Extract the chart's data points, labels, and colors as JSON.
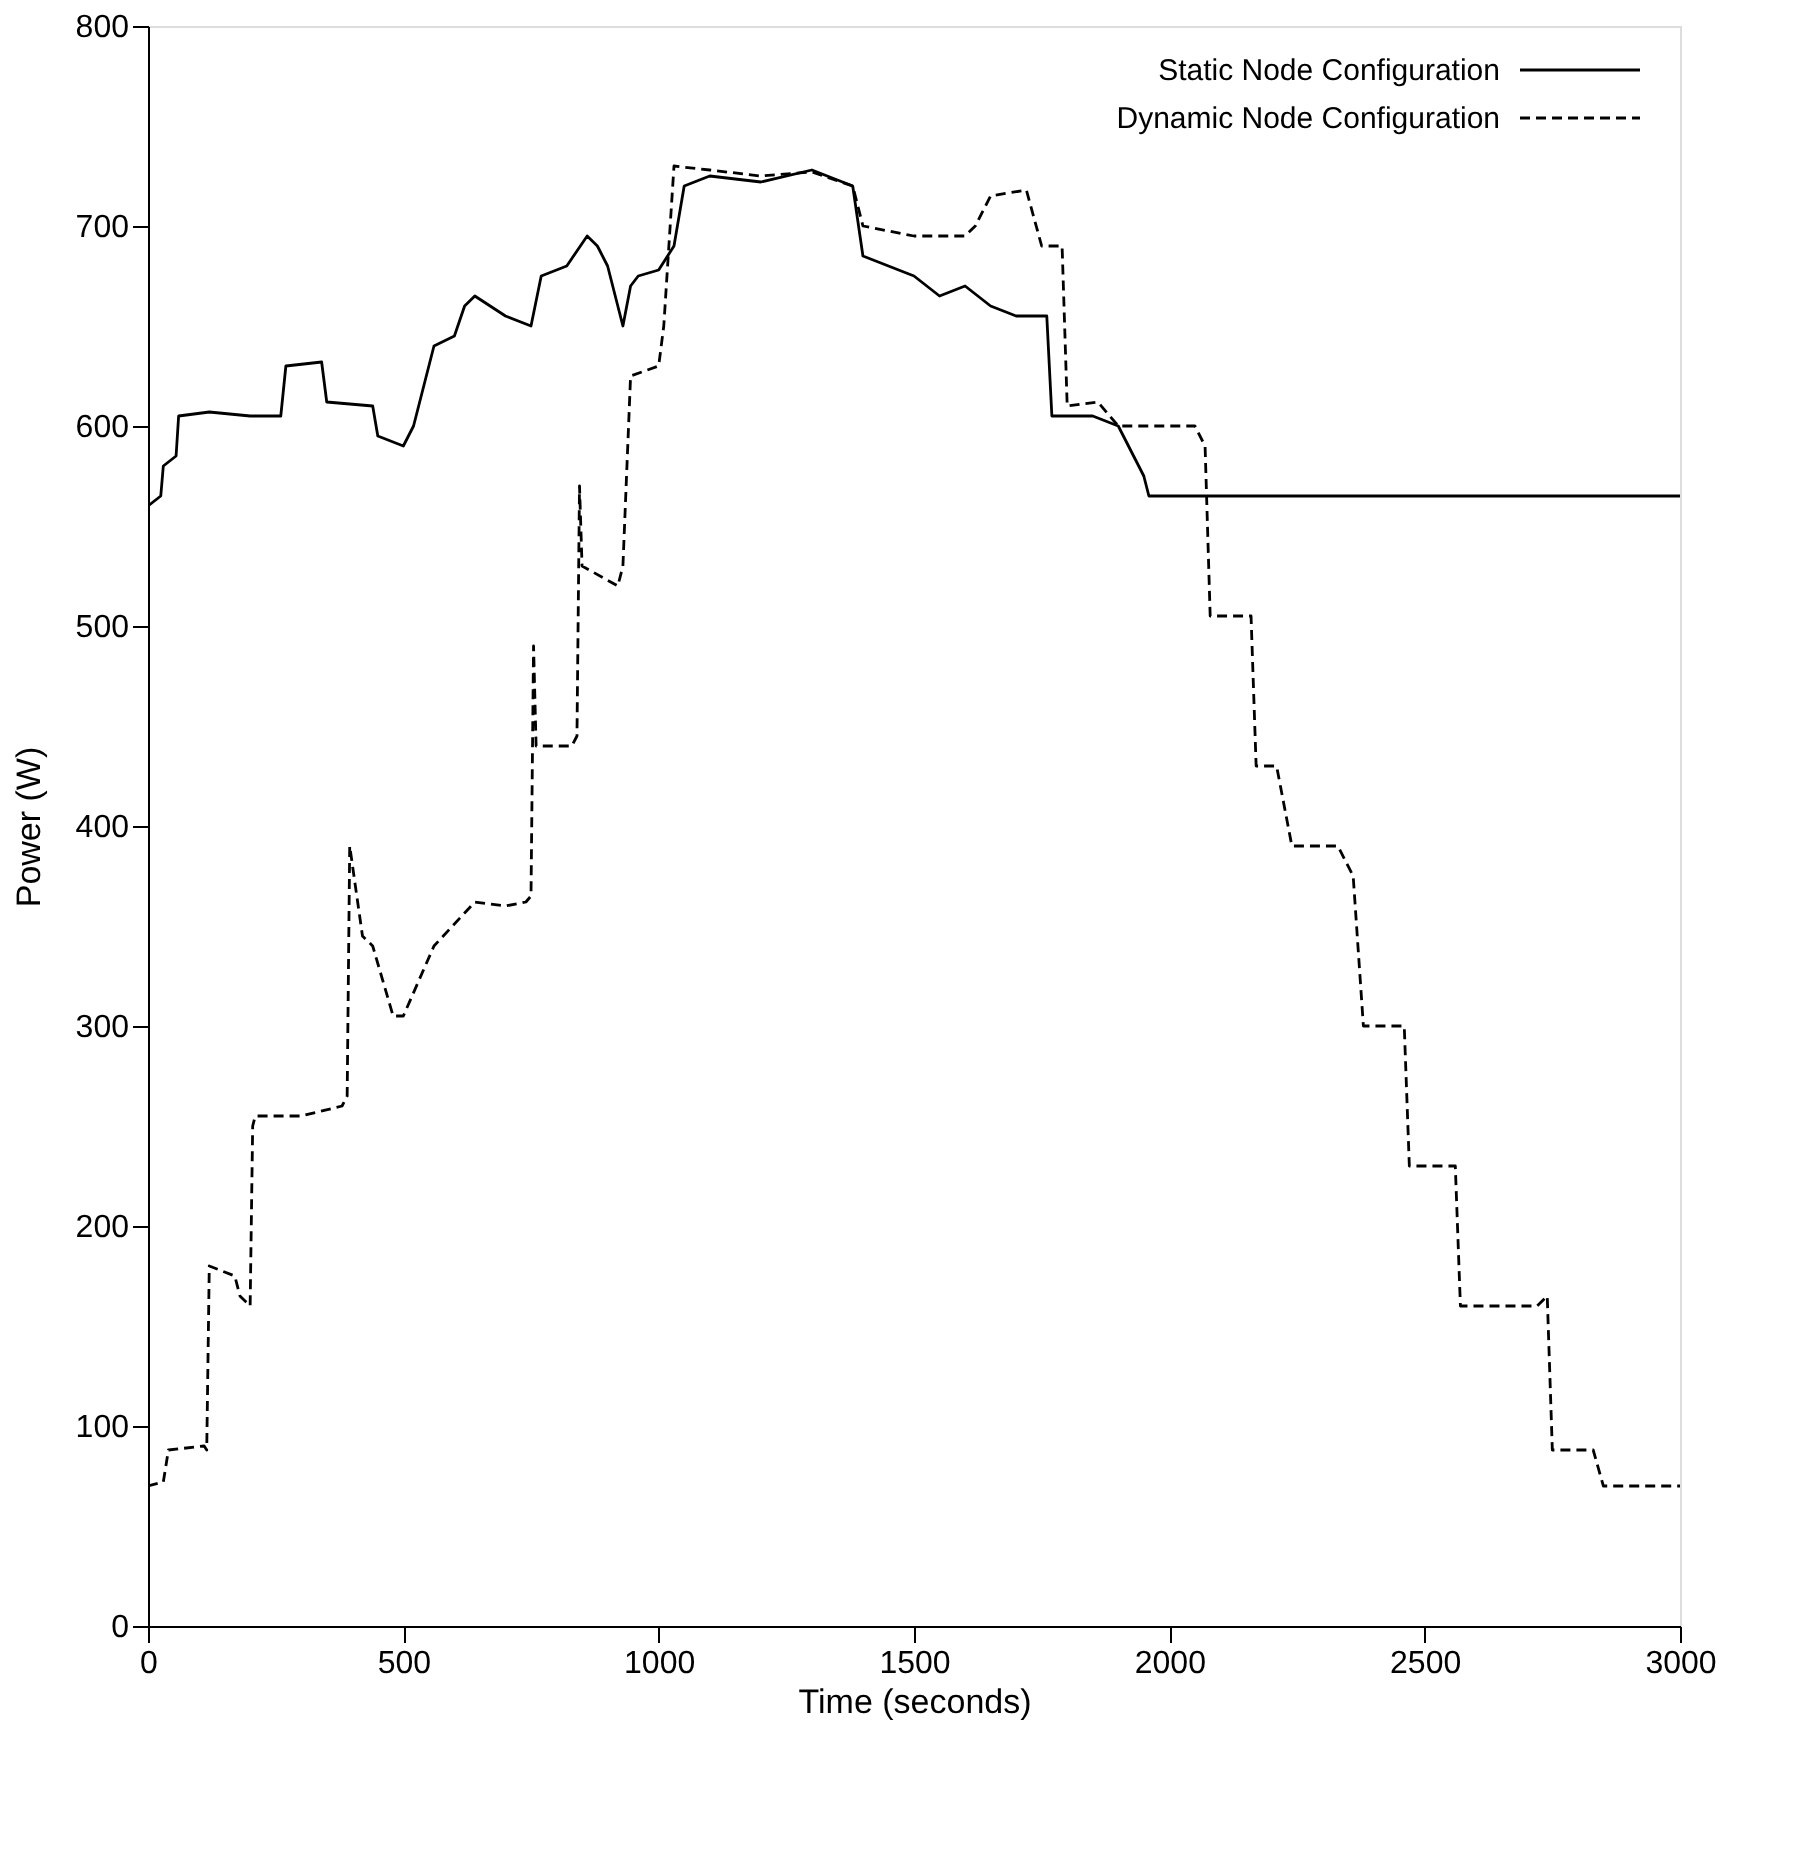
{
  "chart_data": {
    "type": "line",
    "xlabel": "Time (seconds)",
    "ylabel": "Power (W)",
    "xlim": [
      0,
      3000
    ],
    "ylim": [
      0,
      800
    ],
    "xticks": [
      0,
      500,
      1000,
      1500,
      2000,
      2500,
      3000
    ],
    "yticks": [
      0,
      100,
      200,
      300,
      400,
      500,
      600,
      700,
      800
    ],
    "grid": false,
    "legend": "top right",
    "marker": "none",
    "series": [
      {
        "name": "Static Node Configuration",
        "color": "#000000",
        "line_style": "solid",
        "x": [
          0,
          25,
          30,
          55,
          60,
          120,
          200,
          260,
          270,
          340,
          350,
          440,
          450,
          500,
          520,
          540,
          560,
          600,
          620,
          640,
          700,
          750,
          770,
          820,
          860,
          880,
          900,
          930,
          945,
          960,
          1000,
          1030,
          1050,
          1100,
          1200,
          1300,
          1380,
          1400,
          1450,
          1500,
          1550,
          1600,
          1650,
          1700,
          1760,
          1770,
          1850,
          1900,
          1930,
          1950,
          1960,
          2000,
          2200,
          2500,
          2800,
          3000
        ],
        "values": [
          560,
          565,
          580,
          585,
          605,
          607,
          605,
          605,
          630,
          632,
          612,
          610,
          595,
          590,
          600,
          620,
          640,
          645,
          660,
          665,
          655,
          650,
          675,
          680,
          695,
          690,
          680,
          650,
          670,
          675,
          678,
          690,
          720,
          725,
          722,
          728,
          720,
          685,
          680,
          675,
          665,
          670,
          660,
          655,
          655,
          605,
          605,
          600,
          585,
          575,
          565,
          565,
          565,
          565,
          565,
          565
        ]
      },
      {
        "name": "Dynamic Node Configuration",
        "color": "#000000",
        "line_style": "dashed",
        "x": [
          0,
          30,
          40,
          110,
          115,
          120,
          170,
          180,
          200,
          205,
          210,
          300,
          380,
          390,
          395,
          420,
          440,
          480,
          500,
          560,
          640,
          700,
          740,
          750,
          755,
          760,
          830,
          840,
          845,
          850,
          920,
          930,
          945,
          1000,
          1010,
          1030,
          1100,
          1200,
          1300,
          1380,
          1400,
          1500,
          1600,
          1620,
          1650,
          1720,
          1750,
          1790,
          1800,
          1860,
          1900,
          2050,
          2070,
          2080,
          2140,
          2160,
          2170,
          2210,
          2240,
          2330,
          2360,
          2380,
          2440,
          2460,
          2470,
          2540,
          2560,
          2570,
          2720,
          2740,
          2750,
          2830,
          2850,
          3000
        ],
        "values": [
          70,
          72,
          88,
          90,
          88,
          180,
          175,
          165,
          160,
          250,
          255,
          255,
          260,
          265,
          390,
          345,
          340,
          305,
          305,
          340,
          362,
          360,
          362,
          365,
          490,
          440,
          440,
          445,
          570,
          530,
          520,
          530,
          625,
          630,
          650,
          730,
          728,
          725,
          727,
          720,
          700,
          695,
          695,
          700,
          715,
          718,
          690,
          690,
          610,
          612,
          600,
          600,
          590,
          505,
          505,
          505,
          430,
          430,
          390,
          390,
          375,
          300,
          300,
          300,
          230,
          230,
          230,
          160,
          160,
          165,
          88,
          88,
          70,
          70
        ]
      }
    ]
  }
}
